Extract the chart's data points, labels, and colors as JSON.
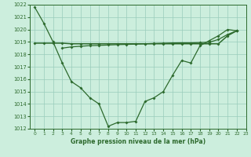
{
  "xlabel": "Graphe pression niveau de la mer (hPa)",
  "x": [
    0,
    1,
    2,
    3,
    4,
    5,
    6,
    7,
    8,
    9,
    10,
    11,
    12,
    13,
    14,
    15,
    16,
    17,
    18,
    19,
    20,
    21,
    22
  ],
  "series1": [
    1021.8,
    1020.5,
    1019.0,
    1017.3,
    1015.8,
    1015.3,
    1014.5,
    1014.0,
    1012.2,
    1012.5,
    1012.5,
    1012.6,
    1014.2,
    1014.5,
    1015.0,
    1016.3,
    1017.5,
    1017.3,
    1018.7,
    1019.1,
    1019.5,
    1020.0,
    1019.9
  ],
  "series2": [
    1018.9,
    1018.9,
    1018.9,
    1018.9,
    1018.85,
    1018.85,
    1018.85,
    1018.85,
    1018.85,
    1018.85,
    1018.85,
    1018.85,
    1018.85,
    1018.85,
    1018.85,
    1018.85,
    1018.85,
    1018.85,
    1018.85,
    1018.85,
    1018.85,
    1019.5,
    1019.9
  ],
  "series3": [
    null,
    null,
    null,
    1018.5,
    1018.6,
    1018.65,
    1018.7,
    1018.72,
    1018.75,
    1018.78,
    1018.8,
    1018.82,
    1018.85,
    1018.88,
    1018.9,
    1018.92,
    1018.93,
    1018.93,
    1018.95,
    1018.97,
    1019.2,
    1019.6,
    1019.9
  ],
  "ylim": [
    1012,
    1022
  ],
  "yticks": [
    1012,
    1013,
    1014,
    1015,
    1016,
    1017,
    1018,
    1019,
    1020,
    1021,
    1022
  ],
  "xlim_min": -0.5,
  "xlim_max": 23.0,
  "xticks": [
    0,
    1,
    2,
    3,
    4,
    5,
    6,
    7,
    8,
    9,
    10,
    11,
    12,
    13,
    14,
    15,
    16,
    17,
    18,
    19,
    20,
    21,
    22,
    23
  ],
  "line_color": "#2d6a2d",
  "bg_color": "#cceedd",
  "grid_color": "#99ccbb"
}
